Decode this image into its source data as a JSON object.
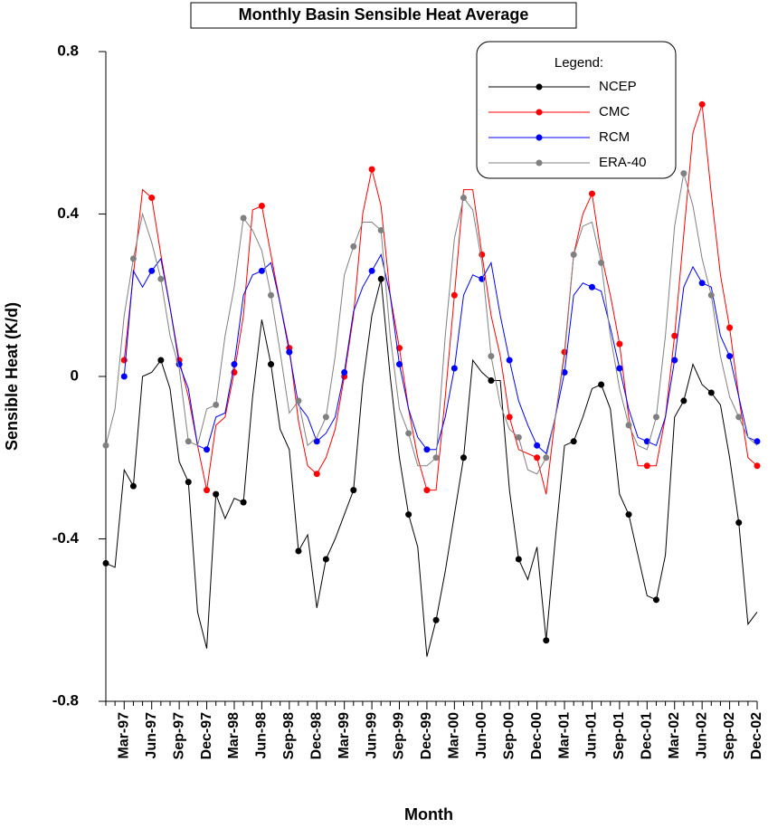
{
  "chart_data": {
    "type": "line",
    "title": "Monthly Basin Sensible Heat Average",
    "x_label": "Month",
    "y_label": "Sensible Heat (K/d)",
    "legend_title": "Legend:",
    "legend": "upper right",
    "categories": [
      null,
      null,
      "Mar-97",
      null,
      null,
      "Jun-97",
      null,
      null,
      "Sep-97",
      null,
      null,
      "Dec-97",
      null,
      null,
      "Mar-98",
      null,
      null,
      "Jun-98",
      null,
      null,
      "Sep-98",
      null,
      null,
      "Dec-98",
      null,
      null,
      "Mar-99",
      null,
      null,
      "Jun-99",
      null,
      null,
      "Sep-99",
      null,
      null,
      "Dec-99",
      null,
      null,
      "Mar-00",
      null,
      null,
      "Jun-00",
      null,
      null,
      "Sep-00",
      null,
      null,
      "Dec-00",
      null,
      null,
      "Mar-01",
      null,
      null,
      "Jun-01",
      null,
      null,
      "Sep-01",
      null,
      null,
      "Dec-01",
      null,
      null,
      "Mar-02",
      null,
      null,
      "Jun-02",
      null,
      null,
      "Sep-02",
      null,
      null,
      "Dec-02"
    ],
    "ylim": [
      -0.8,
      0.8
    ],
    "yticks": [
      0.8,
      0.4,
      0,
      -0.4,
      -0.8
    ],
    "series": [
      {
        "name": "NCEP",
        "color": "#000000",
        "values": [
          -0.46,
          -0.47,
          -0.23,
          -0.27,
          0.0,
          0.01,
          0.04,
          -0.03,
          -0.21,
          -0.26,
          -0.58,
          -0.67,
          -0.29,
          -0.35,
          -0.3,
          -0.31,
          -0.05,
          0.14,
          0.03,
          -0.13,
          -0.18,
          -0.43,
          -0.39,
          -0.57,
          -0.45,
          -0.4,
          -0.34,
          -0.28,
          -0.02,
          0.15,
          0.24,
          0.0,
          -0.2,
          -0.34,
          -0.42,
          -0.69,
          -0.6,
          -0.48,
          -0.34,
          -0.2,
          0.04,
          0.01,
          -0.01,
          -0.01,
          -0.28,
          -0.45,
          -0.5,
          -0.42,
          -0.65,
          -0.4,
          -0.17,
          -0.16,
          -0.1,
          -0.03,
          -0.02,
          -0.08,
          -0.29,
          -0.34,
          -0.44,
          -0.54,
          -0.55,
          -0.44,
          -0.1,
          -0.06,
          0.03,
          -0.02,
          -0.04,
          -0.07,
          -0.2,
          -0.36,
          -0.61,
          -0.58
        ]
      },
      {
        "name": "CMC",
        "color": "#ff0000",
        "values": [
          null,
          null,
          0.04,
          0.25,
          0.46,
          0.44,
          0.3,
          0.17,
          0.04,
          -0.05,
          -0.17,
          -0.28,
          -0.12,
          -0.1,
          0.01,
          0.15,
          0.41,
          0.42,
          0.3,
          0.18,
          0.07,
          -0.11,
          -0.22,
          -0.24,
          -0.2,
          -0.13,
          0.0,
          0.15,
          0.4,
          0.51,
          0.42,
          0.2,
          0.07,
          -0.08,
          -0.2,
          -0.28,
          -0.28,
          -0.05,
          0.2,
          0.46,
          0.46,
          0.3,
          0.15,
          0.05,
          -0.1,
          -0.18,
          -0.19,
          -0.2,
          -0.29,
          -0.1,
          0.06,
          0.3,
          0.4,
          0.45,
          0.3,
          0.2,
          0.08,
          -0.1,
          -0.22,
          -0.22,
          -0.22,
          -0.1,
          0.1,
          0.35,
          0.6,
          0.67,
          0.45,
          0.25,
          0.12,
          -0.05,
          -0.2,
          -0.22
        ]
      },
      {
        "name": "RCM",
        "color": "#0000ff",
        "values": [
          null,
          null,
          0.0,
          0.26,
          0.22,
          0.26,
          0.29,
          0.17,
          0.03,
          -0.03,
          -0.17,
          -0.18,
          -0.1,
          -0.09,
          0.03,
          0.2,
          0.25,
          0.26,
          0.28,
          0.18,
          0.06,
          -0.07,
          -0.1,
          -0.16,
          -0.14,
          -0.1,
          0.01,
          0.16,
          0.22,
          0.26,
          0.3,
          0.2,
          0.03,
          -0.08,
          -0.15,
          -0.18,
          -0.18,
          -0.1,
          0.02,
          0.2,
          0.25,
          0.24,
          0.28,
          0.15,
          0.04,
          -0.06,
          -0.12,
          -0.17,
          -0.19,
          -0.1,
          0.01,
          0.2,
          0.23,
          0.22,
          0.21,
          0.12,
          0.02,
          -0.08,
          -0.15,
          -0.16,
          -0.17,
          -0.1,
          0.04,
          0.22,
          0.27,
          0.23,
          0.22,
          0.1,
          0.05,
          -0.05,
          -0.15,
          -0.16
        ]
      },
      {
        "name": "ERA-40",
        "color": "#808080",
        "values": [
          -0.17,
          -0.08,
          0.15,
          0.29,
          0.4,
          0.33,
          0.24,
          0.1,
          0.02,
          -0.16,
          -0.17,
          -0.08,
          -0.07,
          0.1,
          0.22,
          0.39,
          0.36,
          0.31,
          0.2,
          0.06,
          -0.09,
          -0.06,
          -0.17,
          -0.15,
          -0.1,
          0.05,
          0.25,
          0.32,
          0.38,
          0.38,
          0.36,
          0.1,
          -0.08,
          -0.14,
          -0.22,
          -0.22,
          -0.2,
          0.1,
          0.34,
          0.44,
          0.41,
          0.28,
          0.05,
          -0.07,
          -0.13,
          -0.15,
          -0.23,
          -0.24,
          -0.2,
          -0.1,
          0.05,
          0.3,
          0.37,
          0.38,
          0.28,
          0.1,
          -0.03,
          -0.12,
          -0.17,
          -0.18,
          -0.1,
          0.1,
          0.37,
          0.5,
          0.42,
          0.29,
          0.2,
          0.05,
          -0.05,
          -0.1,
          -0.15,
          -0.17
        ]
      }
    ]
  }
}
